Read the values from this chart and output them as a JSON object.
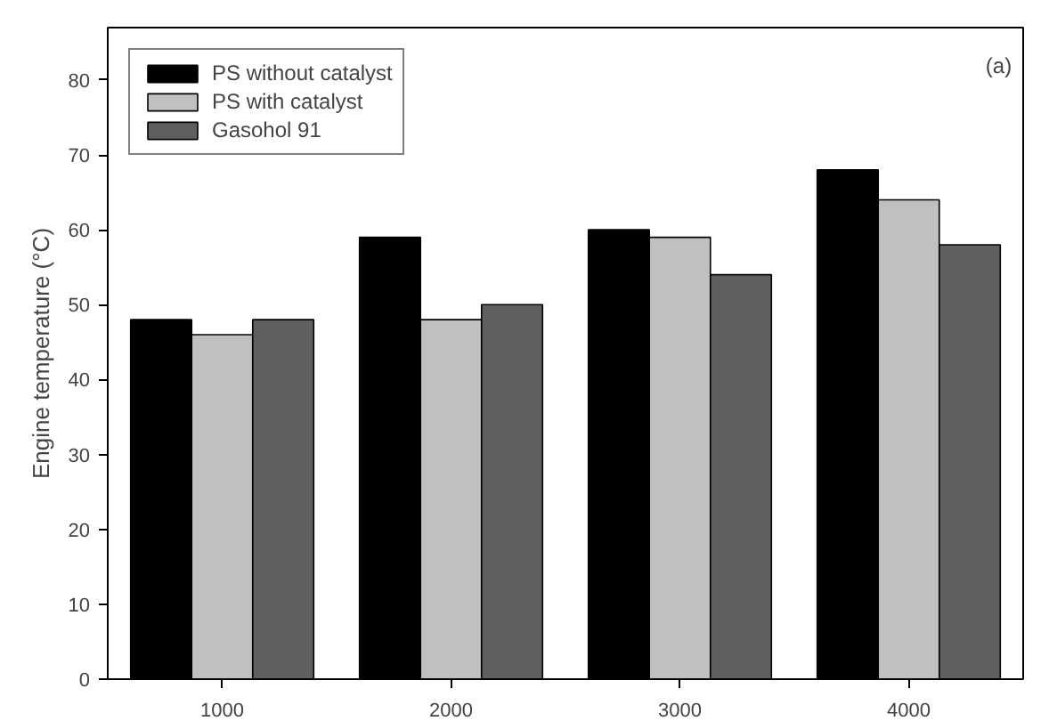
{
  "chart_data": {
    "type": "bar",
    "ylabel": "Engine temperature (°C)",
    "categories": [
      "1000",
      "2000",
      "3000",
      "4000"
    ],
    "series": [
      {
        "name": "PS without catalyst",
        "color": "#000000",
        "values": [
          48,
          59,
          60,
          68
        ]
      },
      {
        "name": "PS with catalyst",
        "color": "#c0c0c0",
        "values": [
          46,
          48,
          59,
          64
        ]
      },
      {
        "name": "Gasohol 91",
        "color": "#5f5f5f",
        "values": [
          48,
          50,
          54,
          58
        ]
      }
    ],
    "ylim": [
      0,
      87
    ],
    "yticks": [
      0,
      10,
      20,
      30,
      40,
      50,
      60,
      70,
      80
    ],
    "grid": false,
    "legend": "top left",
    "annotations": [
      "(a)"
    ]
  }
}
